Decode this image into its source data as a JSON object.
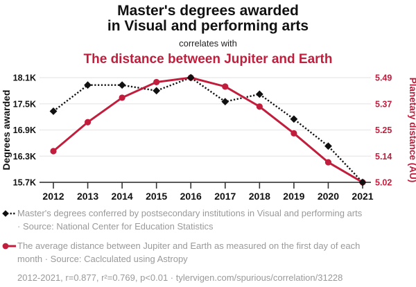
{
  "header": {
    "title_line1": "Master's degrees awarded",
    "title_line2": "in Visual and performing arts",
    "connector": "correlates with",
    "subtitle": "The distance between Jupiter and Earth"
  },
  "chart_data": {
    "type": "line",
    "x": [
      2012,
      2013,
      2014,
      2015,
      2016,
      2017,
      2018,
      2019,
      2020,
      2021
    ],
    "series": [
      {
        "name": "Master's degrees awarded in Visual and performing arts",
        "axis": "left",
        "values": [
          17330,
          17930,
          17930,
          17800,
          18100,
          17550,
          17720,
          17150,
          16530,
          15700
        ],
        "color": "#111111",
        "line_style": "dotted",
        "marker": "diamond"
      },
      {
        "name": "The average distance between Jupiter and Earth (AU)",
        "axis": "right",
        "values": [
          5.16,
          5.29,
          5.4,
          5.47,
          5.49,
          5.45,
          5.36,
          5.24,
          5.11,
          5.02
        ],
        "color": "#c01e3c",
        "line_style": "solid",
        "marker": "circle"
      }
    ],
    "left_axis": {
      "label": "Degrees awarded",
      "tick_labels": [
        "18.1K",
        "17.5K",
        "16.9K",
        "16.3K",
        "15.7K"
      ],
      "max": 18100,
      "min": 15700
    },
    "right_axis": {
      "label": "Planetary distance (AU)",
      "tick_labels": [
        "5.49",
        "5.37",
        "5.25",
        "5.14",
        "5.02"
      ],
      "max": 5.49,
      "min": 5.02
    },
    "grid": true,
    "legend_position": "bottom"
  },
  "legend": {
    "items": [
      {
        "label": "Master's degrees conferred by postsecondary institutions in Visual and performing arts · Source: National Center for Education Statistics"
      },
      {
        "label": "The average distance between Jupiter and Earth as measured on the first day of each month · Source: Caclculated using Astropy"
      }
    ],
    "footer": "2012-2021, r=0.877, r²=0.769, p<0.01 · tylervigen.com/spurious/correlation/31228"
  },
  "colors": {
    "accent_red": "#c01e3c",
    "series_black": "#111111",
    "legend_text": "#999999",
    "gridline": "#e8e8e8",
    "axis_line": "#222222",
    "tick_mark": "#333333"
  }
}
